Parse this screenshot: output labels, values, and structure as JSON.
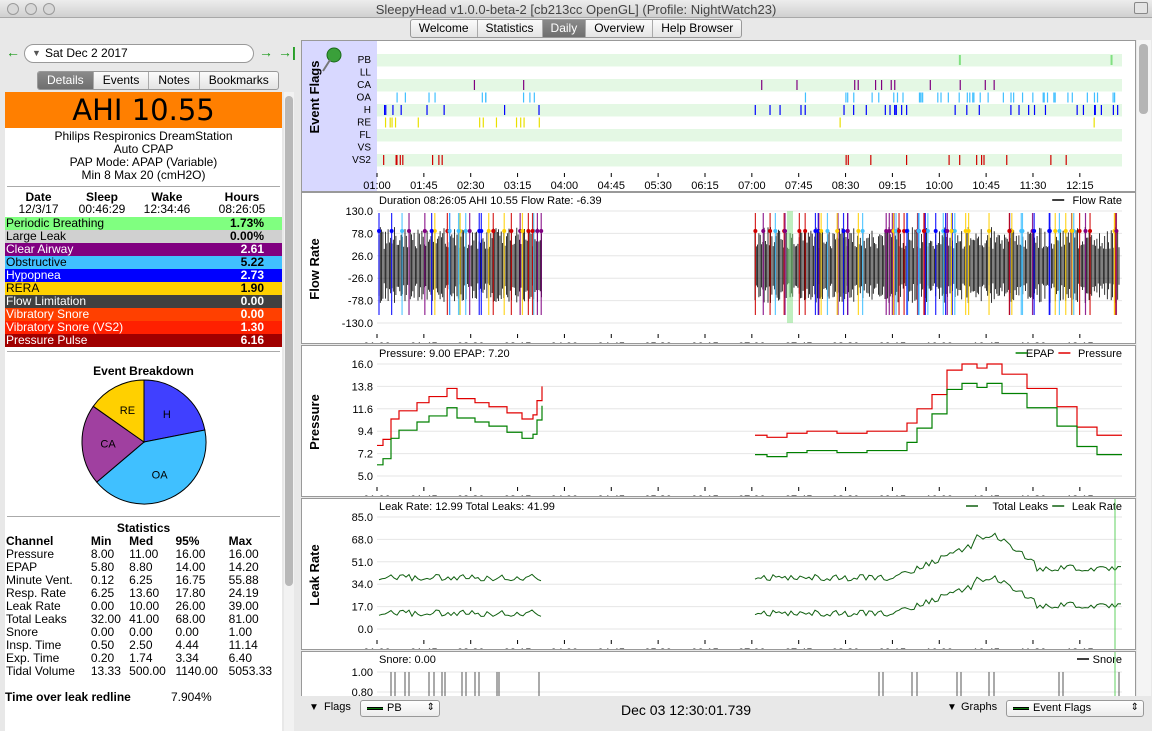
{
  "window": {
    "title": "SleepyHead v1.0.0-beta-2 [cb213cc OpenGL] (Profile: NightWatch23)"
  },
  "tabs": [
    "Welcome",
    "Statistics",
    "Daily",
    "Overview",
    "Help Browser"
  ],
  "date_nav": {
    "date": "Sat Dec 2 2017",
    "prev_icon": "left-arrow-icon",
    "next_icon": "right-arrow-icon",
    "last_icon": "jump-to-end-icon"
  },
  "left_tabs": [
    "Details",
    "Events",
    "Notes",
    "Bookmarks"
  ],
  "summary": {
    "ahi": "AHI 10.55",
    "machine": [
      "Philips Respironics DreamStation",
      "Auto CPAP",
      "PAP Mode: APAP (Variable)",
      "Min 8 Max 20 (cmH2O)"
    ],
    "headers": [
      "Date",
      "Sleep",
      "Wake",
      "Hours"
    ],
    "values": [
      "12/3/17",
      "00:46:29",
      "12:34:46",
      "08:26:05"
    ]
  },
  "indices": [
    {
      "label": "Periodic Breathing",
      "value": "1.73%",
      "color": "#80ff80",
      "text": "#000000"
    },
    {
      "label": "Large Leak",
      "value": "0.00%",
      "color": "#d0d0d0",
      "text": "#000000"
    },
    {
      "label": "Clear Airway",
      "value": "2.61",
      "color": "#800080",
      "text": "#ffffff"
    },
    {
      "label": "Obstructive",
      "value": "5.22",
      "color": "#40c0ff",
      "text": "#000000"
    },
    {
      "label": "Hypopnea",
      "value": "2.73",
      "color": "#0000ff",
      "text": "#ffffff"
    },
    {
      "label": "RERA",
      "value": "1.90",
      "color": "#ffd000",
      "text": "#000000"
    },
    {
      "label": "Flow Limitation",
      "value": "0.00",
      "color": "#404040",
      "text": "#ffffff"
    },
    {
      "label": "Vibratory Snore",
      "value": "0.00",
      "color": "#ff4000",
      "text": "#ffffff"
    },
    {
      "label": "Vibratory Snore (VS2)",
      "value": "1.30",
      "color": "#ff2000",
      "text": "#ffffff"
    },
    {
      "label": "Pressure Pulse",
      "value": "6.16",
      "color": "#a00000",
      "text": "#ffffff"
    }
  ],
  "breakdown": {
    "title": "Event Breakdown",
    "slices": [
      {
        "label": "H",
        "value": 2.73,
        "color": "#4040ff"
      },
      {
        "label": "OA",
        "value": 5.22,
        "color": "#40c0ff"
      },
      {
        "label": "CA",
        "value": 2.61,
        "color": "#a040a0"
      },
      {
        "label": "RE",
        "value": 1.9,
        "color": "#ffd000"
      }
    ]
  },
  "statistics": {
    "title": "Statistics",
    "headers": [
      "Channel",
      "Min",
      "Med",
      "95%",
      "Max"
    ],
    "rows": [
      [
        "Pressure",
        "8.00",
        "11.00",
        "16.00",
        "16.00"
      ],
      [
        "EPAP",
        "5.80",
        "8.80",
        "14.00",
        "14.20"
      ],
      [
        "Minute Vent.",
        "0.12",
        "6.25",
        "16.75",
        "55.88"
      ],
      [
        "Resp. Rate",
        "6.25",
        "13.60",
        "17.80",
        "24.19"
      ],
      [
        "Leak Rate",
        "0.00",
        "10.00",
        "26.00",
        "39.00"
      ],
      [
        "Total Leaks",
        "32.00",
        "41.00",
        "68.00",
        "81.00"
      ],
      [
        "Snore",
        "0.00",
        "0.00",
        "0.00",
        "1.00"
      ],
      [
        "Insp. Time",
        "0.50",
        "2.50",
        "4.44",
        "11.14"
      ],
      [
        "Exp. Time",
        "0.20",
        "1.74",
        "3.34",
        "6.40"
      ],
      [
        "Tidal Volume",
        "13.33",
        "500.00",
        "1140.00",
        "5053.33"
      ]
    ]
  },
  "leak_redline": {
    "label": "Time over leak redline",
    "value": "7.904%"
  },
  "time_ticks": [
    "01:00",
    "01:45",
    "02:30",
    "03:15",
    "04:00",
    "04:45",
    "05:30",
    "06:15",
    "07:00",
    "07:45",
    "08:30",
    "09:15",
    "10:00",
    "10:45",
    "11:30",
    "12:15"
  ],
  "graphs": {
    "event_flags": {
      "title": "Event Flags",
      "rows": [
        "PB",
        "LL",
        "CA",
        "OA",
        "H",
        "RE",
        "FL",
        "VS",
        "VS2"
      ],
      "pin_icon": "pushpin-icon"
    },
    "flow_rate": {
      "title": "Flow Rate",
      "info": "Duration 08:26:05 AHI 10.55 Flow Rate: -6.39",
      "legend": [
        "Flow Rate"
      ],
      "yticks": [
        "130.0",
        "78.0",
        "26.0",
        "-26.0",
        "-78.0",
        "-130.0"
      ]
    },
    "pressure": {
      "title": "Pressure",
      "info": "Pressure: 9.00 EPAP: 7.20",
      "legend": [
        "EPAP",
        "Pressure"
      ],
      "yticks": [
        "16.0",
        "13.8",
        "11.6",
        "9.4",
        "7.2",
        "5.0"
      ]
    },
    "leak_rate": {
      "title": "Leak Rate",
      "info": "Leak Rate: 12.99 Total Leaks: 41.99",
      "legend": [
        "Total Leaks",
        "Leak Rate"
      ],
      "yticks": [
        "85.0",
        "68.0",
        "51.0",
        "34.0",
        "17.0",
        "0.0"
      ]
    },
    "snore": {
      "info": "Snore: 0.00",
      "legend": [
        "Snore"
      ],
      "yticks": [
        "1.00",
        "0.80"
      ]
    }
  },
  "bottom": {
    "flags_label": "Flags",
    "flags_value": "PB",
    "datetime": "Dec 03 12:30:01.739",
    "graphs_label": "Graphs",
    "graphs_value": "Event Flags"
  },
  "colors": {
    "flow_line": "#000000",
    "epap": "#008000",
    "pressure": "#e00000",
    "leak": "#106010",
    "accent_orange": "#ff7f00"
  }
}
